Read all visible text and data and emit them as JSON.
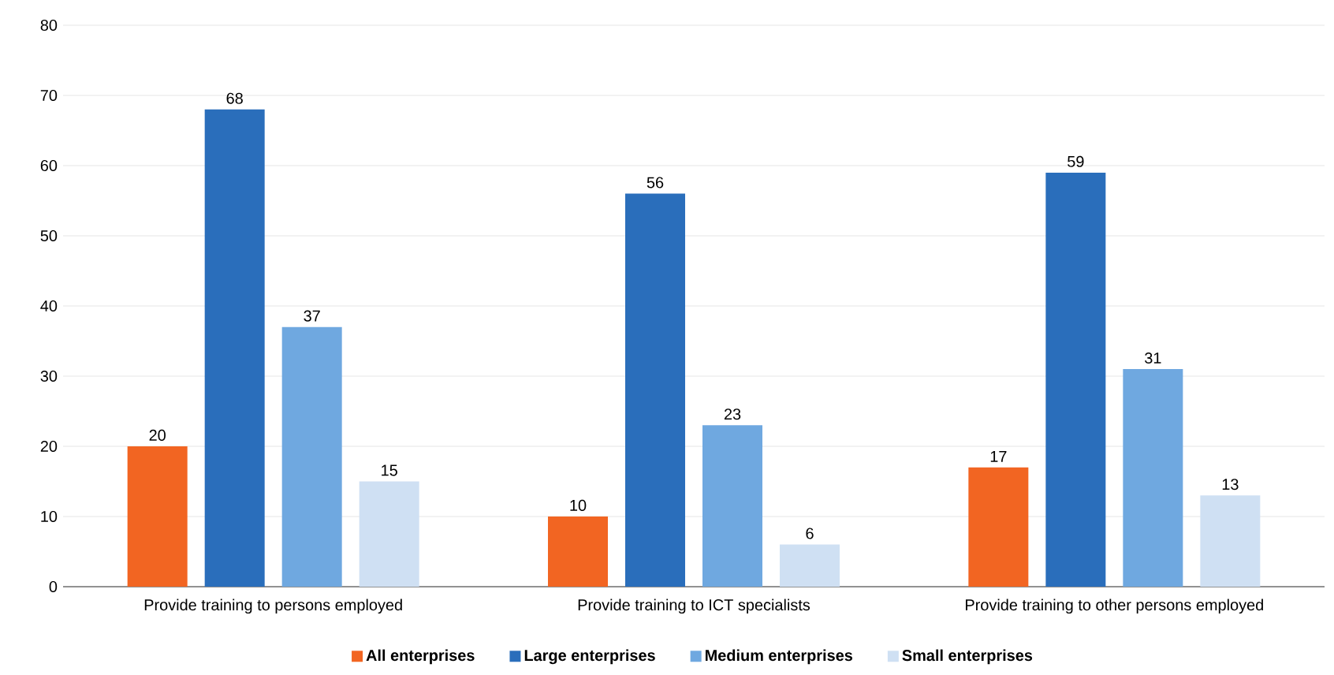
{
  "chart_data": {
    "type": "bar",
    "categories": [
      "Provide training to persons employed",
      "Provide training to ICT specialists",
      "Provide training to other persons employed"
    ],
    "series": [
      {
        "name": "All enterprises",
        "color": "#f26522",
        "values": [
          20,
          10,
          17
        ]
      },
      {
        "name": "Large enterprises",
        "color": "#2a6ebb",
        "values": [
          68,
          56,
          59
        ]
      },
      {
        "name": "Medium enterprises",
        "color": "#6fa8e0",
        "values": [
          37,
          23,
          31
        ]
      },
      {
        "name": "Small enterprises",
        "color": "#cfe0f3",
        "values": [
          15,
          6,
          13
        ]
      }
    ],
    "ylim": [
      0,
      80
    ],
    "yticks": [
      0,
      10,
      20,
      30,
      40,
      50,
      60,
      70,
      80
    ],
    "grid": "y",
    "legend": "bottom",
    "data_labels": true
  }
}
